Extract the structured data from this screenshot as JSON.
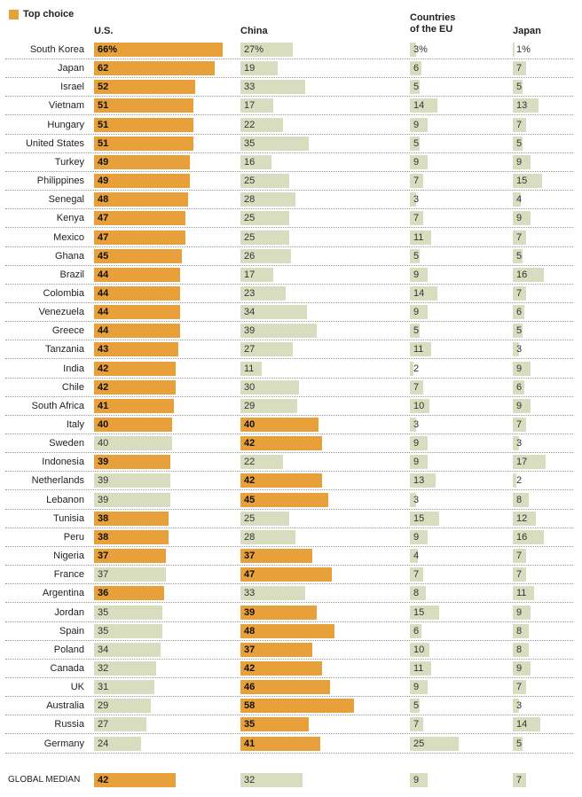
{
  "legend": {
    "label": "Top choice",
    "color": "#e8a13a"
  },
  "columns": [
    "U.S.",
    "China",
    "Countries\nof the EU",
    "Japan"
  ],
  "colors": {
    "top": "#e8a13a",
    "normal": "#d9ddbf"
  },
  "chart_data": {
    "type": "bar",
    "series": [
      {
        "name": "U.S."
      },
      {
        "name": "China"
      },
      {
        "name": "Countries of the EU"
      },
      {
        "name": "Japan"
      }
    ],
    "rows": [
      {
        "country": "South Korea",
        "values": [
          66,
          27,
          3,
          1
        ],
        "labels": [
          "66%",
          "27%",
          "3%",
          "1%"
        ],
        "top": 0
      },
      {
        "country": "Japan",
        "values": [
          62,
          19,
          6,
          7
        ],
        "top": 0
      },
      {
        "country": "Israel",
        "values": [
          52,
          33,
          5,
          5
        ],
        "top": 0
      },
      {
        "country": "Vietnam",
        "values": [
          51,
          17,
          14,
          13
        ],
        "top": 0
      },
      {
        "country": "Hungary",
        "values": [
          51,
          22,
          9,
          7
        ],
        "top": 0
      },
      {
        "country": "United States",
        "values": [
          51,
          35,
          5,
          5
        ],
        "top": 0
      },
      {
        "country": "Turkey",
        "values": [
          49,
          16,
          9,
          9
        ],
        "top": 0
      },
      {
        "country": "Philippines",
        "values": [
          49,
          25,
          7,
          15
        ],
        "top": 0
      },
      {
        "country": "Senegal",
        "values": [
          48,
          28,
          3,
          4
        ],
        "top": 0
      },
      {
        "country": "Kenya",
        "values": [
          47,
          25,
          7,
          9
        ],
        "top": 0
      },
      {
        "country": "Mexico",
        "values": [
          47,
          25,
          11,
          7
        ],
        "top": 0
      },
      {
        "country": "Ghana",
        "values": [
          45,
          26,
          5,
          5
        ],
        "top": 0
      },
      {
        "country": "Brazil",
        "values": [
          44,
          17,
          9,
          16
        ],
        "top": 0
      },
      {
        "country": "Colombia",
        "values": [
          44,
          23,
          14,
          7
        ],
        "top": 0
      },
      {
        "country": "Venezuela",
        "values": [
          44,
          34,
          9,
          6
        ],
        "top": 0
      },
      {
        "country": "Greece",
        "values": [
          44,
          39,
          5,
          5
        ],
        "top": 0
      },
      {
        "country": "Tanzania",
        "values": [
          43,
          27,
          11,
          3
        ],
        "top": 0
      },
      {
        "country": "India",
        "values": [
          42,
          11,
          2,
          9
        ],
        "top": 0
      },
      {
        "country": "Chile",
        "values": [
          42,
          30,
          7,
          6
        ],
        "top": 0
      },
      {
        "country": "South Africa",
        "values": [
          41,
          29,
          10,
          9
        ],
        "top": 0
      },
      {
        "country": "Italy",
        "values": [
          40,
          40,
          3,
          7
        ],
        "top": [
          0,
          1
        ]
      },
      {
        "country": "Sweden",
        "values": [
          40,
          42,
          9,
          3
        ],
        "top": 1
      },
      {
        "country": "Indonesia",
        "values": [
          39,
          22,
          9,
          17
        ],
        "top": 0
      },
      {
        "country": "Netherlands",
        "values": [
          39,
          42,
          13,
          2
        ],
        "top": 1
      },
      {
        "country": "Lebanon",
        "values": [
          39,
          45,
          3,
          8
        ],
        "top": 1
      },
      {
        "country": "Tunisia",
        "values": [
          38,
          25,
          15,
          12
        ],
        "top": 0
      },
      {
        "country": "Peru",
        "values": [
          38,
          28,
          9,
          16
        ],
        "top": 0
      },
      {
        "country": "Nigeria",
        "values": [
          37,
          37,
          4,
          7
        ],
        "top": [
          0,
          1
        ]
      },
      {
        "country": "France",
        "values": [
          37,
          47,
          7,
          7
        ],
        "top": 1
      },
      {
        "country": "Argentina",
        "values": [
          36,
          33,
          8,
          11
        ],
        "top": 0
      },
      {
        "country": "Jordan",
        "values": [
          35,
          39,
          15,
          9
        ],
        "top": 1
      },
      {
        "country": "Spain",
        "values": [
          35,
          48,
          6,
          8
        ],
        "top": 1
      },
      {
        "country": "Poland",
        "values": [
          34,
          37,
          10,
          8
        ],
        "top": 1
      },
      {
        "country": "Canada",
        "values": [
          32,
          42,
          11,
          9
        ],
        "top": 1
      },
      {
        "country": "UK",
        "values": [
          31,
          46,
          9,
          7
        ],
        "top": 1
      },
      {
        "country": "Australia",
        "values": [
          29,
          58,
          5,
          3
        ],
        "top": 1
      },
      {
        "country": "Russia",
        "values": [
          27,
          35,
          7,
          14
        ],
        "top": 1
      },
      {
        "country": "Germany",
        "values": [
          24,
          41,
          25,
          5
        ],
        "top": 1
      }
    ],
    "median": {
      "country": "GLOBAL MEDIAN",
      "values": [
        42,
        32,
        9,
        7
      ],
      "top": 0
    }
  }
}
